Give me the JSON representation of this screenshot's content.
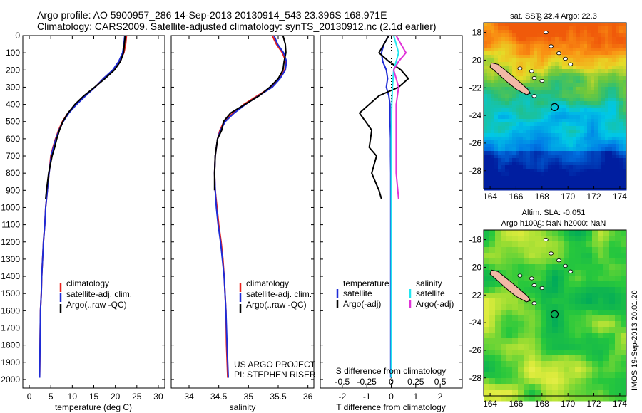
{
  "header": {
    "line1": "Argo profile: AO 5900957_286 14-Sep-2013 20130914_543 23.396S 168.971E",
    "line2": "Climatology: CARS2009. Satellite-adjusted climatology: synTS_20130912.nc (2.1d earlier)"
  },
  "colors": {
    "climatology": "#e8201c",
    "satellite": "#1e2bd6",
    "argo": "#000000",
    "salinity_satellite": "#22e6f0",
    "salinity_argo": "#e033d8",
    "coast_fill": "#f2b9a6"
  },
  "chart_data": [
    {
      "id": "temperature",
      "type": "line",
      "xlabel": "temperature (deg C)",
      "ylabel": "",
      "xlim": [
        -1.5,
        31.5
      ],
      "ylim": [
        2050,
        0
      ],
      "xticks": [
        "0",
        "5",
        "10",
        "15",
        "20",
        "25",
        "30"
      ],
      "yticks": [
        "0",
        "100",
        "200",
        "300",
        "400",
        "500",
        "600",
        "700",
        "800",
        "900",
        "1000",
        "1100",
        "1200",
        "1300",
        "1400",
        "1500",
        "1600",
        "1700",
        "1800",
        "1900",
        "2000"
      ],
      "legend": [
        "climatology",
        "satellite-adj. clim.",
        "Argo(..raw -QC)"
      ],
      "series": [
        {
          "name": "climatology",
          "color": "#e8201c",
          "x": [
            22.6,
            22.4,
            22.0,
            21.0,
            19.5,
            17.2,
            15.3,
            13.0,
            10.8,
            9.0,
            7.7,
            6.8,
            6.1,
            5.5,
            5.0,
            4.6,
            4.2,
            3.8,
            3.6,
            3.3,
            3.1,
            2.9,
            2.8,
            2.6,
            2.5,
            2.4
          ],
          "y": [
            0,
            50,
            100,
            150,
            200,
            250,
            300,
            350,
            400,
            450,
            500,
            550,
            600,
            650,
            700,
            800,
            900,
            1000,
            1100,
            1200,
            1300,
            1400,
            1500,
            1600,
            1800,
            1990
          ]
        },
        {
          "name": "satellite-adj. clim.",
          "color": "#1e2bd6",
          "x": [
            22.2,
            22.0,
            21.7,
            20.8,
            19.4,
            17.2,
            15.3,
            13.1,
            11.0,
            9.2,
            7.9,
            6.9,
            6.2,
            5.6,
            5.1,
            4.6,
            4.2,
            3.8,
            3.6,
            3.3,
            3.1,
            2.9,
            2.8,
            2.6,
            2.5,
            2.4
          ],
          "y": [
            0,
            50,
            100,
            150,
            200,
            250,
            300,
            350,
            400,
            450,
            500,
            550,
            600,
            650,
            700,
            800,
            900,
            1000,
            1100,
            1200,
            1300,
            1400,
            1500,
            1600,
            1800,
            1990
          ]
        },
        {
          "name": "Argo(..raw -QC)",
          "color": "#000000",
          "x": [
            22.3,
            22.1,
            21.9,
            21.2,
            19.8,
            17.6,
            15.2,
            12.7,
            10.6,
            9.0,
            7.8,
            7.0,
            6.4,
            5.9,
            5.3,
            4.9,
            4.5,
            4.0,
            3.8
          ],
          "y": [
            0,
            50,
            100,
            150,
            200,
            250,
            300,
            350,
            400,
            450,
            500,
            550,
            600,
            650,
            700,
            750,
            800,
            900,
            950
          ]
        }
      ]
    },
    {
      "id": "salinity",
      "type": "line",
      "xlabel": "salinity",
      "ylabel": "",
      "xlim": [
        33.7,
        36.1
      ],
      "ylim": [
        2050,
        0
      ],
      "xticks": [
        "34",
        "34.5",
        "35",
        "35.5",
        "36"
      ],
      "legend": [
        "climatology",
        "satellite-adj. clim.",
        "Argo(..raw -QC)"
      ],
      "series": [
        {
          "name": "climatology",
          "color": "#e8201c",
          "x": [
            35.4,
            35.47,
            35.57,
            35.63,
            35.61,
            35.52,
            35.38,
            35.15,
            34.92,
            34.74,
            34.59,
            34.52,
            34.48,
            34.46,
            34.44,
            34.43,
            34.44,
            34.47,
            34.5,
            34.54,
            34.57,
            34.59,
            34.62,
            34.63,
            34.65
          ],
          "y": [
            0,
            50,
            100,
            150,
            200,
            250,
            300,
            350,
            400,
            450,
            500,
            550,
            600,
            650,
            700,
            800,
            900,
            1000,
            1100,
            1200,
            1300,
            1400,
            1600,
            1800,
            1990
          ]
        },
        {
          "name": "satellite-adj. clim.",
          "color": "#1e2bd6",
          "x": [
            35.43,
            35.49,
            35.59,
            35.64,
            35.62,
            35.53,
            35.4,
            35.17,
            34.95,
            34.76,
            34.61,
            34.53,
            34.48,
            34.46,
            34.44,
            34.43,
            34.44,
            34.46,
            34.49,
            34.53,
            34.56,
            34.59,
            34.62,
            34.64,
            34.66
          ],
          "y": [
            0,
            50,
            100,
            150,
            200,
            250,
            300,
            350,
            400,
            450,
            500,
            550,
            600,
            650,
            700,
            800,
            900,
            1000,
            1100,
            1200,
            1300,
            1400,
            1600,
            1800,
            1990
          ]
        },
        {
          "name": "Argo(..raw -QC)",
          "color": "#000000",
          "x": [
            35.58,
            35.62,
            35.63,
            35.6,
            35.58,
            35.5,
            35.36,
            35.18,
            34.94,
            34.7,
            34.58,
            34.55,
            34.48,
            34.46,
            34.44,
            34.43,
            34.43
          ],
          "y": [
            0,
            50,
            100,
            150,
            200,
            250,
            300,
            350,
            400,
            450,
            500,
            550,
            600,
            650,
            700,
            800,
            900
          ]
        }
      ]
    },
    {
      "id": "difference",
      "type": "line",
      "xlabel": "T difference from climatology",
      "xlabel_top": "S difference from climatology",
      "xlim": [
        -2.9,
        2.9
      ],
      "ylim": [
        2050,
        0
      ],
      "xticks": [
        "-2",
        "-1",
        "0",
        "1",
        "2"
      ],
      "xticks_top": [
        "-0.5",
        "-0.25",
        "0",
        "0.25",
        "0.5"
      ],
      "legend_temperature": {
        "title": "temperature",
        "items": [
          "satellite",
          "Argo(-adj)"
        ]
      },
      "legend_salinity": {
        "title": "salinity",
        "items": [
          "satellite",
          "Argo(-adj)"
        ]
      },
      "series": [
        {
          "name": "temperature satellite",
          "color": "#1e2bd6",
          "x": [
            -0.1,
            -0.3,
            -0.4,
            -0.35,
            -0.2,
            -0.15,
            -0.2,
            -0.1,
            -0.05,
            -0.05,
            -0.03,
            -0.03,
            -0.02,
            -0.02,
            -0.02,
            -0.02,
            -0.02,
            -0.02
          ],
          "y": [
            0,
            50,
            100,
            150,
            200,
            250,
            300,
            350,
            400,
            500,
            600,
            700,
            800,
            1000,
            1200,
            1400,
            1600,
            1990
          ]
        },
        {
          "name": "temperature Argo(-adj)",
          "color": "#000000",
          "x": [
            -0.1,
            -0.3,
            -0.5,
            -0.1,
            0.4,
            0.7,
            0.3,
            -0.5,
            -1.3,
            -0.8,
            -0.9,
            -0.6,
            -0.8,
            -0.5,
            -0.4
          ],
          "y": [
            0,
            50,
            100,
            150,
            200,
            250,
            300,
            350,
            450,
            550,
            650,
            700,
            800,
            900,
            950
          ]
        },
        {
          "name": "salinity satellite",
          "color": "#22e6f0",
          "x": [
            0.1,
            0.2,
            0.3,
            0.2,
            0.1,
            0.05,
            0.02,
            0.0,
            0.0,
            0.0
          ],
          "y": [
            0,
            50,
            100,
            150,
            200,
            300,
            400,
            600,
            800,
            1990
          ]
        },
        {
          "name": "salinity Argo(-adj)",
          "color": "#e033d8",
          "x": [
            0.2,
            0.4,
            0.6,
            0.3,
            0.1,
            0.2,
            0.3,
            0.2,
            0.2,
            0.2,
            0.3
          ],
          "y": [
            0,
            50,
            100,
            150,
            200,
            250,
            300,
            400,
            600,
            800,
            950
          ]
        }
      ]
    },
    {
      "id": "sst_map",
      "type": "heatmap",
      "title": "sat. SST: 22.4  Argo: 22.3",
      "xticks": [
        "164",
        "166",
        "168",
        "170",
        "172",
        "174"
      ],
      "yticks": [
        "-18",
        "-20",
        "-22",
        "-24",
        "-26",
        "-28"
      ],
      "xlim": [
        163.5,
        174.5
      ],
      "ylim": [
        -29.3,
        -17.3
      ],
      "argo_position": {
        "lon": 168.971,
        "lat": -23.396
      }
    },
    {
      "id": "sla_map",
      "type": "heatmap",
      "title": "Altim. SLA: -0.051",
      "subtitle": "Argo h1000: NaN h2000: NaN",
      "xticks": [
        "164",
        "166",
        "168",
        "170",
        "172",
        "174"
      ],
      "yticks": [
        "-18",
        "-20",
        "-22",
        "-24",
        "-26",
        "-28"
      ],
      "xlim": [
        163.5,
        174.5
      ],
      "ylim": [
        -29.3,
        -17.3
      ],
      "argo_position": {
        "lon": 168.971,
        "lat": -23.396
      }
    }
  ],
  "credit": {
    "line1": "US ARGO PROJECT",
    "line2": "PI: STEPHEN RISER"
  },
  "stamp": "IMOS 19-Sep-2013 20:01:20"
}
